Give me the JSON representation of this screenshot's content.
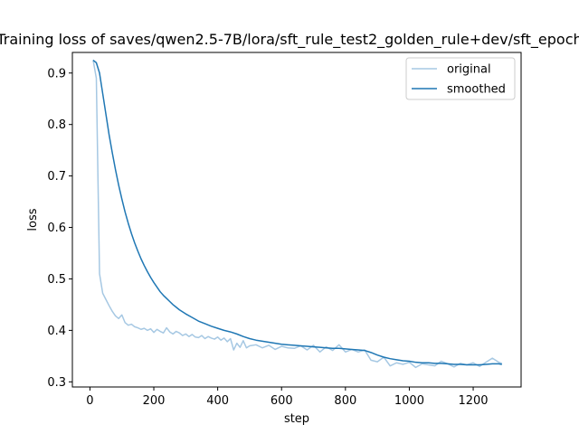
{
  "chart_data": {
    "type": "line",
    "title": "Training loss of saves/qwen2.5-7B/lora/sft_rule_test2_golden_rule+dev/sft_epoch",
    "xlabel": "step",
    "ylabel": "loss",
    "xlim": [
      -55,
      1350
    ],
    "ylim": [
      0.29,
      0.94
    ],
    "xticks": [
      0,
      200,
      400,
      600,
      800,
      1000,
      1200
    ],
    "yticks": [
      0.3,
      0.4,
      0.5,
      0.6,
      0.7,
      0.8,
      0.9
    ],
    "grid": false,
    "legend_position": "top-right",
    "series": [
      {
        "name": "original",
        "color": "#a6c8e3",
        "x": [
          10,
          20,
          30,
          40,
          50,
          60,
          70,
          80,
          90,
          100,
          110,
          120,
          130,
          140,
          150,
          160,
          170,
          180,
          190,
          200,
          210,
          220,
          230,
          240,
          250,
          260,
          270,
          280,
          290,
          300,
          310,
          320,
          330,
          340,
          350,
          360,
          370,
          380,
          390,
          400,
          410,
          420,
          430,
          440,
          450,
          460,
          470,
          480,
          490,
          500,
          520,
          540,
          560,
          580,
          600,
          620,
          640,
          660,
          680,
          700,
          720,
          740,
          760,
          780,
          800,
          820,
          840,
          860,
          880,
          900,
          920,
          940,
          960,
          980,
          1000,
          1020,
          1040,
          1060,
          1080,
          1100,
          1120,
          1140,
          1160,
          1180,
          1200,
          1220,
          1240,
          1260,
          1280,
          1290
        ],
        "y": [
          0.925,
          0.89,
          0.51,
          0.472,
          0.46,
          0.448,
          0.437,
          0.428,
          0.423,
          0.43,
          0.415,
          0.41,
          0.412,
          0.407,
          0.405,
          0.402,
          0.404,
          0.4,
          0.403,
          0.396,
          0.402,
          0.398,
          0.395,
          0.405,
          0.397,
          0.393,
          0.398,
          0.395,
          0.39,
          0.393,
          0.388,
          0.392,
          0.387,
          0.386,
          0.39,
          0.384,
          0.388,
          0.385,
          0.383,
          0.387,
          0.381,
          0.385,
          0.378,
          0.384,
          0.362,
          0.375,
          0.367,
          0.38,
          0.366,
          0.37,
          0.372,
          0.366,
          0.371,
          0.363,
          0.369,
          0.366,
          0.365,
          0.37,
          0.362,
          0.371,
          0.358,
          0.368,
          0.361,
          0.372,
          0.358,
          0.363,
          0.358,
          0.362,
          0.342,
          0.339,
          0.348,
          0.331,
          0.337,
          0.334,
          0.338,
          0.328,
          0.335,
          0.333,
          0.331,
          0.34,
          0.335,
          0.329,
          0.336,
          0.333,
          0.337,
          0.33,
          0.338,
          0.346,
          0.338,
          0.336
        ]
      },
      {
        "name": "smoothed",
        "color": "#1f77b4",
        "x": [
          10,
          20,
          30,
          40,
          50,
          60,
          70,
          80,
          90,
          100,
          110,
          120,
          130,
          140,
          150,
          160,
          170,
          180,
          190,
          200,
          210,
          220,
          230,
          240,
          250,
          260,
          270,
          280,
          290,
          300,
          320,
          340,
          360,
          380,
          400,
          420,
          440,
          460,
          480,
          500,
          520,
          540,
          560,
          580,
          600,
          620,
          640,
          660,
          680,
          700,
          720,
          740,
          760,
          780,
          800,
          820,
          840,
          860,
          880,
          900,
          920,
          940,
          960,
          980,
          1000,
          1020,
          1040,
          1060,
          1080,
          1100,
          1120,
          1140,
          1160,
          1180,
          1200,
          1220,
          1240,
          1260,
          1280,
          1290
        ],
        "y": [
          0.925,
          0.92,
          0.9,
          0.86,
          0.82,
          0.78,
          0.745,
          0.712,
          0.682,
          0.655,
          0.63,
          0.608,
          0.588,
          0.57,
          0.554,
          0.539,
          0.526,
          0.514,
          0.503,
          0.493,
          0.484,
          0.475,
          0.468,
          0.462,
          0.456,
          0.45,
          0.445,
          0.44,
          0.436,
          0.432,
          0.425,
          0.418,
          0.413,
          0.408,
          0.404,
          0.4,
          0.397,
          0.393,
          0.388,
          0.384,
          0.381,
          0.379,
          0.377,
          0.375,
          0.373,
          0.372,
          0.371,
          0.37,
          0.369,
          0.368,
          0.367,
          0.366,
          0.365,
          0.365,
          0.364,
          0.363,
          0.362,
          0.361,
          0.357,
          0.352,
          0.348,
          0.345,
          0.343,
          0.341,
          0.34,
          0.338,
          0.337,
          0.337,
          0.336,
          0.336,
          0.335,
          0.334,
          0.334,
          0.333,
          0.333,
          0.333,
          0.334,
          0.335,
          0.335,
          0.334
        ]
      }
    ]
  }
}
